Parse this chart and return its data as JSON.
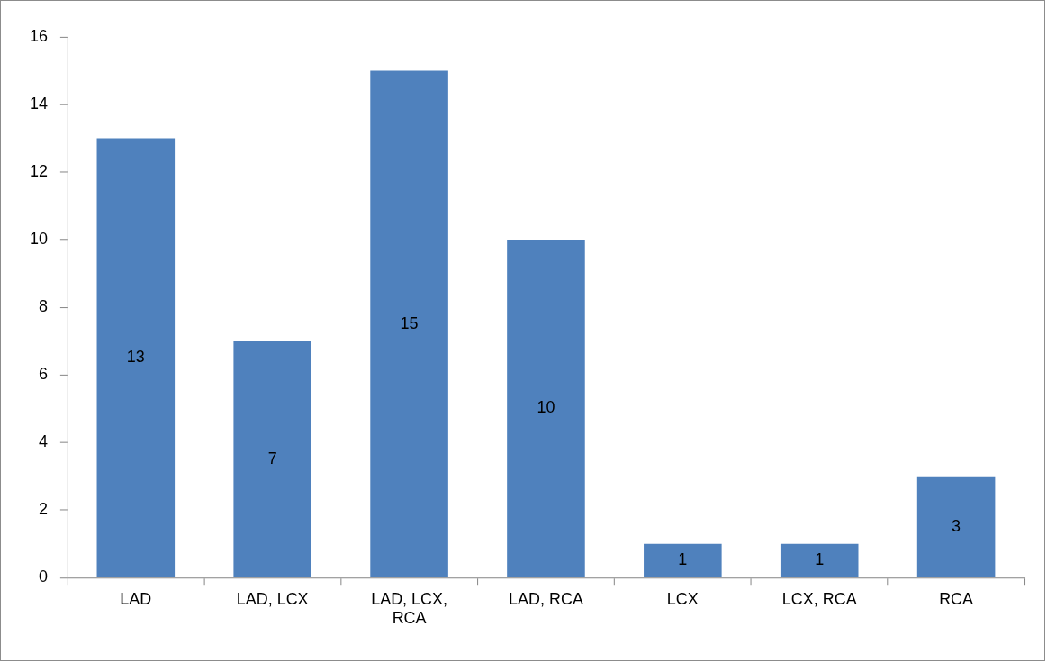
{
  "chart_data": {
    "type": "bar",
    "categories": [
      "LAD",
      "LAD, LCX",
      "LAD, LCX, RCA",
      "LAD, RCA",
      "LCX",
      "LCX, RCA",
      "RCA"
    ],
    "values": [
      13,
      7,
      15,
      10,
      1,
      1,
      3
    ],
    "color": "#4f81bd",
    "ylim": [
      0,
      16
    ],
    "yticks": [
      0,
      2,
      4,
      6,
      8,
      10,
      12,
      14,
      16
    ],
    "grid": false,
    "legend": false,
    "data_labels": true
  }
}
